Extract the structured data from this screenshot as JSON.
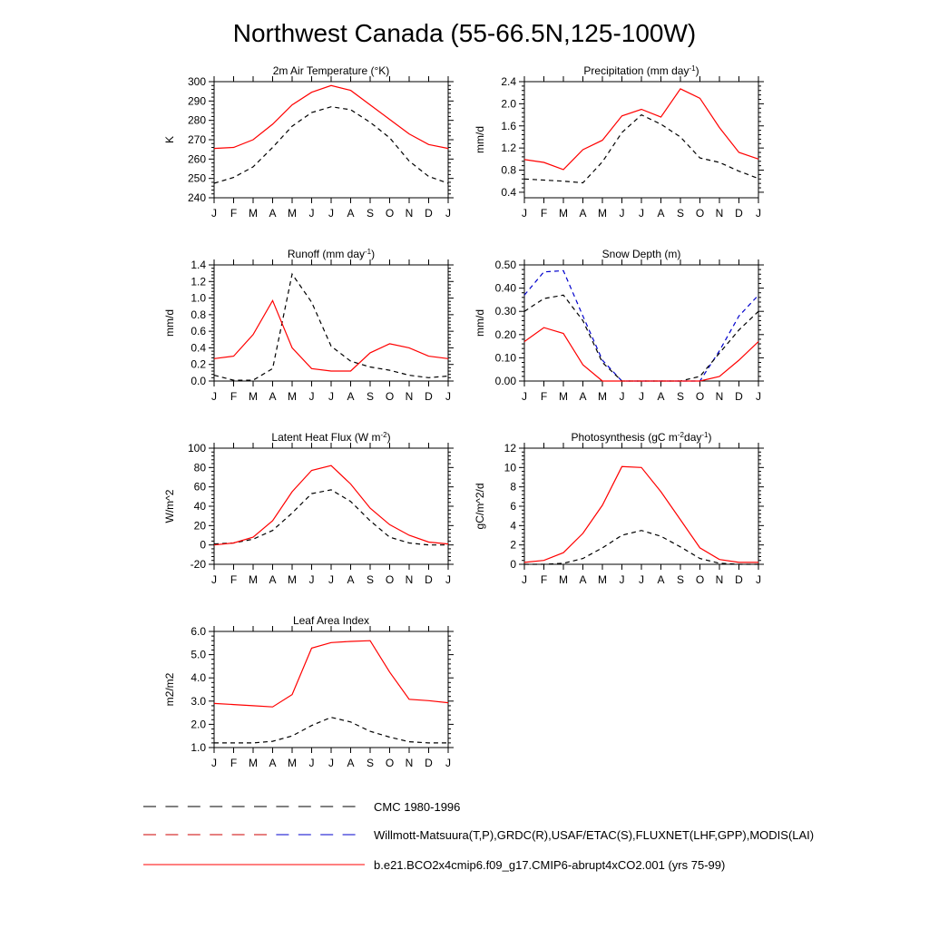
{
  "page_title": "Northwest Canada (55-66.5N,125-100W)",
  "months": [
    "J",
    "F",
    "M",
    "A",
    "M",
    "J",
    "J",
    "A",
    "S",
    "O",
    "N",
    "D",
    "J"
  ],
  "legend": {
    "entries": [
      {
        "label": "CMC 1980-1996",
        "color": "#000000",
        "dash": "dashed"
      },
      {
        "label": "Willmott-Matsuura(T,P),GRDC(R),USAF/ETAC(S),FLUXNET(LHF,GPP),MODIS(LAI)",
        "color": "#cc0000",
        "color2": "#0000cc",
        "dash": "dashed"
      },
      {
        "label": "b.e21.BCO2x4cmip6.f09_g17.CMIP6-abrupt4xCO2.001 (yrs 75-99)",
        "color": "#ff0000",
        "dash": "solid"
      }
    ]
  },
  "chart_data": [
    {
      "type": "line",
      "title": "2m Air Temperature (°K)",
      "ylabel": "K",
      "ylim": [
        240,
        300
      ],
      "yticks": [
        "240",
        "250",
        "260",
        "270",
        "280",
        "290",
        "300"
      ],
      "yticks_values": [
        240,
        250,
        260,
        270,
        280,
        290,
        300
      ],
      "series": [
        {
          "values": [
            247.5,
            250.5,
            256,
            266,
            277,
            284,
            287,
            285.5,
            279,
            271,
            259,
            251,
            247.5
          ],
          "color": "#000000",
          "dash": "dashed"
        },
        {
          "values": [
            265.5,
            266,
            270,
            278,
            288,
            294.5,
            298,
            295.5,
            288,
            280.5,
            273,
            267.5,
            265.5
          ],
          "color": "#ff0000",
          "dash": "solid"
        }
      ]
    },
    {
      "type": "line",
      "title": "Precipitation (mm day-1)",
      "ylabel": "mm/d",
      "ylim": [
        0.3,
        2.4
      ],
      "yticks": [
        "0.4",
        "0.8",
        "1.2",
        "1.6",
        "2.0",
        "2.4"
      ],
      "yticks_values": [
        0.4,
        0.8,
        1.2,
        1.6,
        2.0,
        2.4
      ],
      "series": [
        {
          "values": [
            0.64,
            0.62,
            0.6,
            0.57,
            0.95,
            1.48,
            1.8,
            1.63,
            1.4,
            1.02,
            0.94,
            0.78,
            0.65
          ],
          "color": "#000000",
          "dash": "dashed"
        },
        {
          "values": [
            0.99,
            0.94,
            0.81,
            1.17,
            1.34,
            1.78,
            1.9,
            1.76,
            2.27,
            2.1,
            1.57,
            1.12,
            1.0
          ],
          "color": "#ff0000",
          "dash": "solid"
        }
      ]
    },
    {
      "type": "line",
      "title": "Runoff (mm day-1)",
      "ylabel": "mm/d",
      "ylim": [
        0.0,
        1.4
      ],
      "yticks": [
        "0.0",
        "0.2",
        "0.4",
        "0.6",
        "0.8",
        "1.0",
        "1.2",
        "1.4"
      ],
      "yticks_values": [
        0,
        0.2,
        0.4,
        0.6,
        0.8,
        1.0,
        1.2,
        1.4
      ],
      "series": [
        {
          "values": [
            0.07,
            0.01,
            0.01,
            0.15,
            1.29,
            0.95,
            0.42,
            0.24,
            0.17,
            0.13,
            0.07,
            0.04,
            0.06
          ],
          "color": "#000000",
          "dash": "dashed"
        },
        {
          "values": [
            0.27,
            0.3,
            0.56,
            0.97,
            0.4,
            0.15,
            0.12,
            0.12,
            0.34,
            0.45,
            0.4,
            0.3,
            0.27
          ],
          "color": "#ff0000",
          "dash": "solid"
        }
      ]
    },
    {
      "type": "line",
      "title": "Snow Depth (m)",
      "ylabel": "mm/d",
      "ylim": [
        0.0,
        0.5
      ],
      "yticks": [
        "0.00",
        "0.10",
        "0.20",
        "0.30",
        "0.40",
        "0.50"
      ],
      "yticks_values": [
        0,
        0.1,
        0.2,
        0.3,
        0.4,
        0.5
      ],
      "series": [
        {
          "values": [
            0.37,
            0.47,
            0.475,
            0.28,
            0.09,
            0.0,
            0.0,
            0.0,
            0.0,
            0.0,
            0.13,
            0.28,
            0.37
          ],
          "color": "#0000cc",
          "dash": "dashed"
        },
        {
          "values": [
            0.3,
            0.355,
            0.37,
            0.26,
            0.08,
            0.0,
            0.0,
            0.0,
            0.0,
            0.02,
            0.12,
            0.22,
            0.3
          ],
          "color": "#000000",
          "dash": "dashed"
        },
        {
          "values": [
            0.17,
            0.23,
            0.205,
            0.07,
            0.0,
            0.0,
            0.0,
            0.0,
            0.0,
            0.0,
            0.02,
            0.09,
            0.17
          ],
          "color": "#ff0000",
          "dash": "solid"
        }
      ]
    },
    {
      "type": "line",
      "title": "Latent Heat Flux (W m-2)",
      "ylabel": "W/m^2",
      "ylim": [
        -20,
        100
      ],
      "yticks": [
        "-20",
        "0",
        "20",
        "40",
        "60",
        "80",
        "100"
      ],
      "yticks_values": [
        -20,
        0,
        20,
        40,
        60,
        80,
        100
      ],
      "series": [
        {
          "values": [
            1,
            2,
            6,
            15,
            33,
            53,
            57,
            45,
            25,
            8,
            2,
            0,
            0
          ],
          "color": "#000000",
          "dash": "dashed"
        },
        {
          "values": [
            0,
            2,
            8,
            25,
            55,
            77,
            82,
            63,
            38,
            21,
            10,
            3,
            1
          ],
          "color": "#ff0000",
          "dash": "solid"
        }
      ]
    },
    {
      "type": "line",
      "title": "Photosynthesis (gC m-2day-1)",
      "ylabel": "gC/m^2/d",
      "ylim": [
        0,
        12
      ],
      "yticks": [
        "0",
        "2",
        "4",
        "6",
        "8",
        "10",
        "12"
      ],
      "yticks_values": [
        0,
        2,
        4,
        6,
        8,
        10,
        12
      ],
      "series": [
        {
          "values": [
            0,
            0,
            0.1,
            0.6,
            1.7,
            3.0,
            3.5,
            2.9,
            1.8,
            0.6,
            0.1,
            0,
            0
          ],
          "color": "#000000",
          "dash": "dashed"
        },
        {
          "values": [
            0.2,
            0.4,
            1.2,
            3.2,
            6.1,
            10.1,
            10.0,
            7.5,
            4.6,
            1.7,
            0.5,
            0.2,
            0.2
          ],
          "color": "#ff0000",
          "dash": "solid"
        }
      ]
    },
    {
      "type": "line",
      "title": "Leaf Area Index",
      "ylabel": "m2/m2",
      "ylim": [
        1.0,
        6.0
      ],
      "yticks": [
        "1.0",
        "2.0",
        "3.0",
        "4.0",
        "5.0",
        "6.0"
      ],
      "yticks_values": [
        1,
        2,
        3,
        4,
        5,
        6
      ],
      "series": [
        {
          "values": [
            1.2,
            1.2,
            1.2,
            1.27,
            1.5,
            1.95,
            2.3,
            2.1,
            1.7,
            1.45,
            1.25,
            1.2,
            1.2
          ],
          "color": "#000000",
          "dash": "dashed"
        },
        {
          "values": [
            2.9,
            2.85,
            2.8,
            2.75,
            3.28,
            5.28,
            5.52,
            5.57,
            5.6,
            4.25,
            3.08,
            3.02,
            2.93
          ],
          "color": "#ff0000",
          "dash": "solid"
        }
      ]
    }
  ]
}
